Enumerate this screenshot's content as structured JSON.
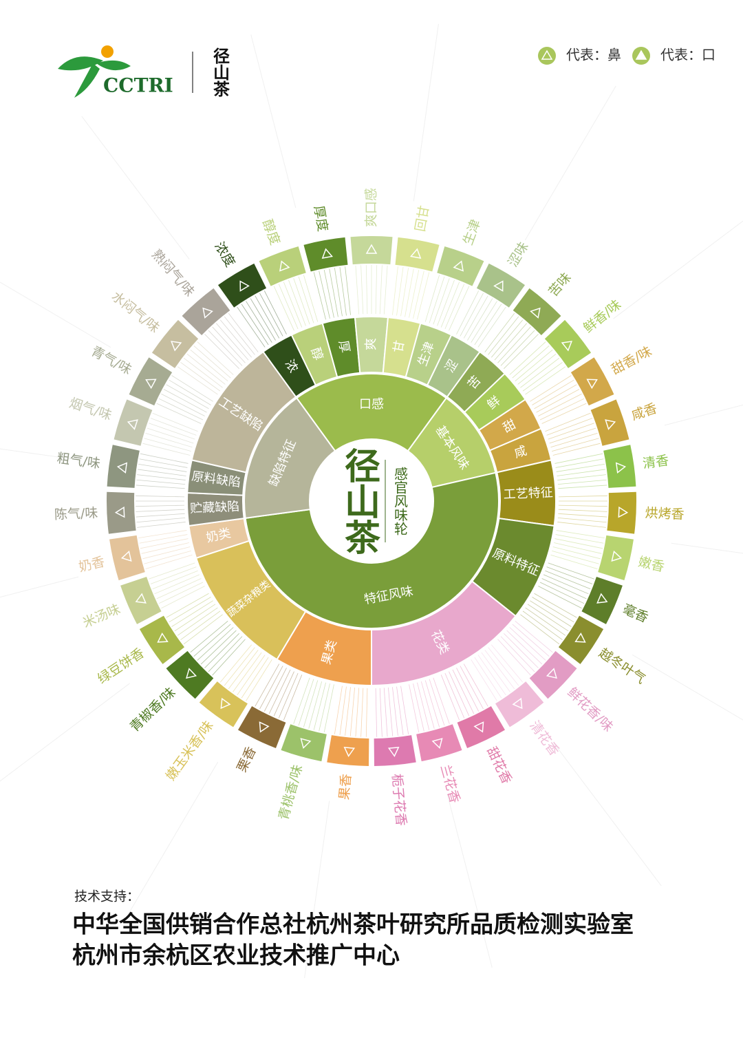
{
  "header": {
    "logo_text": "CCTRI",
    "brand": "径山茶",
    "legend": [
      {
        "label": "代表：鼻",
        "color": "#a9c65c"
      },
      {
        "label": "代表：口",
        "color": "#a9c65c"
      }
    ]
  },
  "wheel": {
    "center": {
      "brand": "径山茶",
      "title": "感官风味轮"
    },
    "groups": [
      {
        "label": "口感",
        "color": "#9bbb4c",
        "children": [
          {
            "label": "浓",
            "color": "#2f4f1a",
            "items": [
              {
                "label": "浓度",
                "color": "#2f4f1a"
              }
            ]
          },
          {
            "label": "醇",
            "color": "#b9d07a",
            "items": [
              {
                "label": "醇度",
                "color": "#b9d07a"
              }
            ]
          },
          {
            "label": "厚",
            "color": "#5f8c2a",
            "items": [
              {
                "label": "厚度",
                "color": "#5f8c2a"
              }
            ]
          },
          {
            "label": "爽",
            "color": "#c5d89a",
            "items": [
              {
                "label": "爽口感",
                "color": "#c5d89a"
              }
            ]
          },
          {
            "label": "甘",
            "color": "#d6e08e",
            "items": [
              {
                "label": "回甘",
                "color": "#d6e08e"
              }
            ]
          },
          {
            "label": "生津",
            "color": "#b8d08a",
            "items": [
              {
                "label": "生津",
                "color": "#b8d08a"
              }
            ]
          },
          {
            "label": "涩",
            "color": "#a9c28a",
            "items": [
              {
                "label": "涩味",
                "color": "#a9c28a"
              }
            ]
          }
        ]
      },
      {
        "label": "基本风味",
        "color": "#b6cf6a",
        "children": [
          {
            "label": "苦",
            "color": "#8faa55",
            "items": [
              {
                "label": "苦味",
                "color": "#8faa55"
              }
            ]
          },
          {
            "label": "鲜",
            "color": "#a8cb5a",
            "items": [
              {
                "label": "鲜香/味",
                "color": "#a8cb5a"
              }
            ]
          },
          {
            "label": "甜",
            "color": "#d2a84a",
            "items": [
              {
                "label": "甜香/味",
                "color": "#d2a84a"
              }
            ]
          },
          {
            "label": "咸",
            "color": "#c9a43e",
            "items": [
              {
                "label": "咸香",
                "color": "#c9a43e"
              }
            ]
          }
        ]
      },
      {
        "label": "特征风味",
        "color": "#7a9e3a",
        "children": [
          {
            "label": "工艺特征",
            "color": "#9a8c1a",
            "items": [
              {
                "label": "清香",
                "color": "#8cc24a"
              },
              {
                "label": "烘烤香",
                "color": "#b8a62a"
              }
            ]
          },
          {
            "label": "原料特征",
            "color": "#6b8a2e",
            "items": [
              {
                "label": "嫩香",
                "color": "#b8d470"
              },
              {
                "label": "毫香",
                "color": "#5e7e2a"
              },
              {
                "label": "越冬叶气",
                "color": "#8a8e2e"
              }
            ]
          },
          {
            "label": "花类",
            "color": "#e8a8cc",
            "items": [
              {
                "label": "鲜花香/味",
                "color": "#e29cc4"
              },
              {
                "label": "清花香",
                "color": "#efbcd8"
              },
              {
                "label": "甜花香",
                "color": "#e07aa8"
              },
              {
                "label": "兰花香",
                "color": "#e78ab5"
              },
              {
                "label": "栀子花香",
                "color": "#dd7ab0"
              }
            ]
          },
          {
            "label": "果类",
            "color": "#eea04e",
            "items": [
              {
                "label": "果香",
                "color": "#eea04e"
              },
              {
                "label": "青桃香/味",
                "color": "#9cc26a"
              },
              {
                "label": "栗香",
                "color": "#8a6a36"
              }
            ]
          },
          {
            "label": "蔬菜杂粮类",
            "color": "#d9c05a",
            "items": [
              {
                "label": "嫩玉米香/味",
                "color": "#d8c25a"
              },
              {
                "label": "青椒香/味",
                "color": "#4e7a22"
              },
              {
                "label": "绿豆饼香",
                "color": "#a8b84a"
              },
              {
                "label": "米汤味",
                "color": "#c6cf92"
              }
            ]
          },
          {
            "label": "奶类",
            "color": "#e8c8a0",
            "items": [
              {
                "label": "奶香",
                "color": "#e3c39a"
              }
            ]
          }
        ]
      },
      {
        "label": "缺陷特征",
        "color": "#b5b59a",
        "children": [
          {
            "label": "贮藏缺陷",
            "color": "#8e8e7a",
            "items": [
              {
                "label": "陈气/味",
                "color": "#9a9a88"
              }
            ]
          },
          {
            "label": "原料缺陷",
            "color": "#8a8f78",
            "items": [
              {
                "label": "粗气/味",
                "color": "#8e9680"
              }
            ]
          },
          {
            "label": "工艺缺陷",
            "color": "#bdb59a",
            "items": [
              {
                "label": "烟气/味",
                "color": "#c4c7b0"
              },
              {
                "label": "青气/味",
                "color": "#a6ab92"
              },
              {
                "label": "水闷气/味",
                "color": "#c6bea0"
              },
              {
                "label": "熟闷气/味",
                "color": "#aaa49a"
              }
            ]
          }
        ]
      }
    ]
  },
  "footer": {
    "caption": "技术支持：",
    "lines": [
      "中华全国供销合作总社杭州茶叶研究所品质检测实验室",
      "杭州市余杭区农业技术推广中心"
    ]
  }
}
